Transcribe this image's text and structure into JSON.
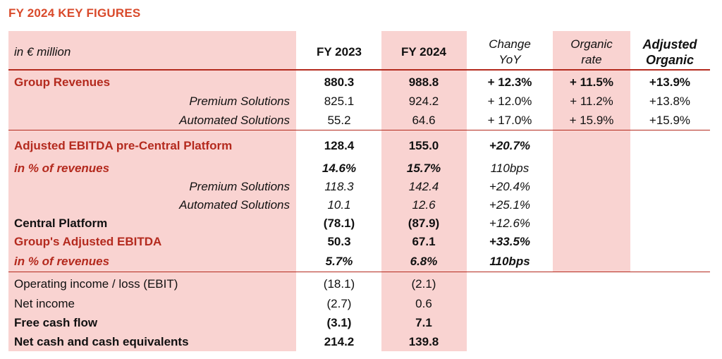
{
  "title": "FY 2024 KEY FIGURES",
  "colors": {
    "accent": "#d94a2b",
    "rule": "#b42a1e",
    "shade": "#f9d3d1"
  },
  "header": {
    "unit": "in € million",
    "fy2023": "FY 2023",
    "fy2024": "FY 2024",
    "change_l1": "Change",
    "change_l2": "YoY",
    "organic_l1": "Organic",
    "organic_l2": "rate",
    "adjusted_l1": "Adjusted",
    "adjusted_l2": "Organic"
  },
  "rows": [
    {
      "label": "Group Revenues",
      "fy2023": "880.3",
      "fy2024": "988.8",
      "change": "+ 12.3%",
      "organic": "+ 11.5%",
      "adjusted": "+13.9%"
    },
    {
      "label": "Premium Solutions",
      "fy2023": "825.1",
      "fy2024": "924.2",
      "change": "+ 12.0%",
      "organic": "+ 11.2%",
      "adjusted": "+13.8%"
    },
    {
      "label": "Automated Solutions",
      "fy2023": "55.2",
      "fy2024": "64.6",
      "change": "+ 17.0%",
      "organic": "+ 15.9%",
      "adjusted": "+15.9%"
    },
    {
      "label": "Adjusted EBITDA pre-Central Platform",
      "fy2023": "128.4",
      "fy2024": "155.0",
      "change": "+20.7%"
    },
    {
      "label": "in % of revenues",
      "fy2023": "14.6%",
      "fy2024": "15.7%",
      "change": "110bps"
    },
    {
      "label": "Premium Solutions",
      "fy2023": "118.3",
      "fy2024": "142.4",
      "change": "+20.4%"
    },
    {
      "label": "Automated Solutions",
      "fy2023": "10.1",
      "fy2024": "12.6",
      "change": "+25.1%"
    },
    {
      "label": "Central Platform",
      "fy2023": "(78.1)",
      "fy2024": "(87.9)",
      "change": "+12.6%"
    },
    {
      "label": "Group's Adjusted EBITDA",
      "fy2023": "50.3",
      "fy2024": "67.1",
      "change": "+33.5%"
    },
    {
      "label": "in % of revenues",
      "fy2023": "5.7%",
      "fy2024": "6.8%",
      "change": "110bps"
    },
    {
      "label": "Operating income / loss (EBIT)",
      "fy2023": "(18.1)",
      "fy2024": "(2.1)"
    },
    {
      "label": "Net income",
      "fy2023": "(2.7)",
      "fy2024": "0.6"
    },
    {
      "label": "Free cash flow",
      "fy2023": "(3.1)",
      "fy2024": "7.1"
    },
    {
      "label": "Net cash and cash equivalents",
      "fy2023": "214.2",
      "fy2024": "139.8"
    }
  ]
}
